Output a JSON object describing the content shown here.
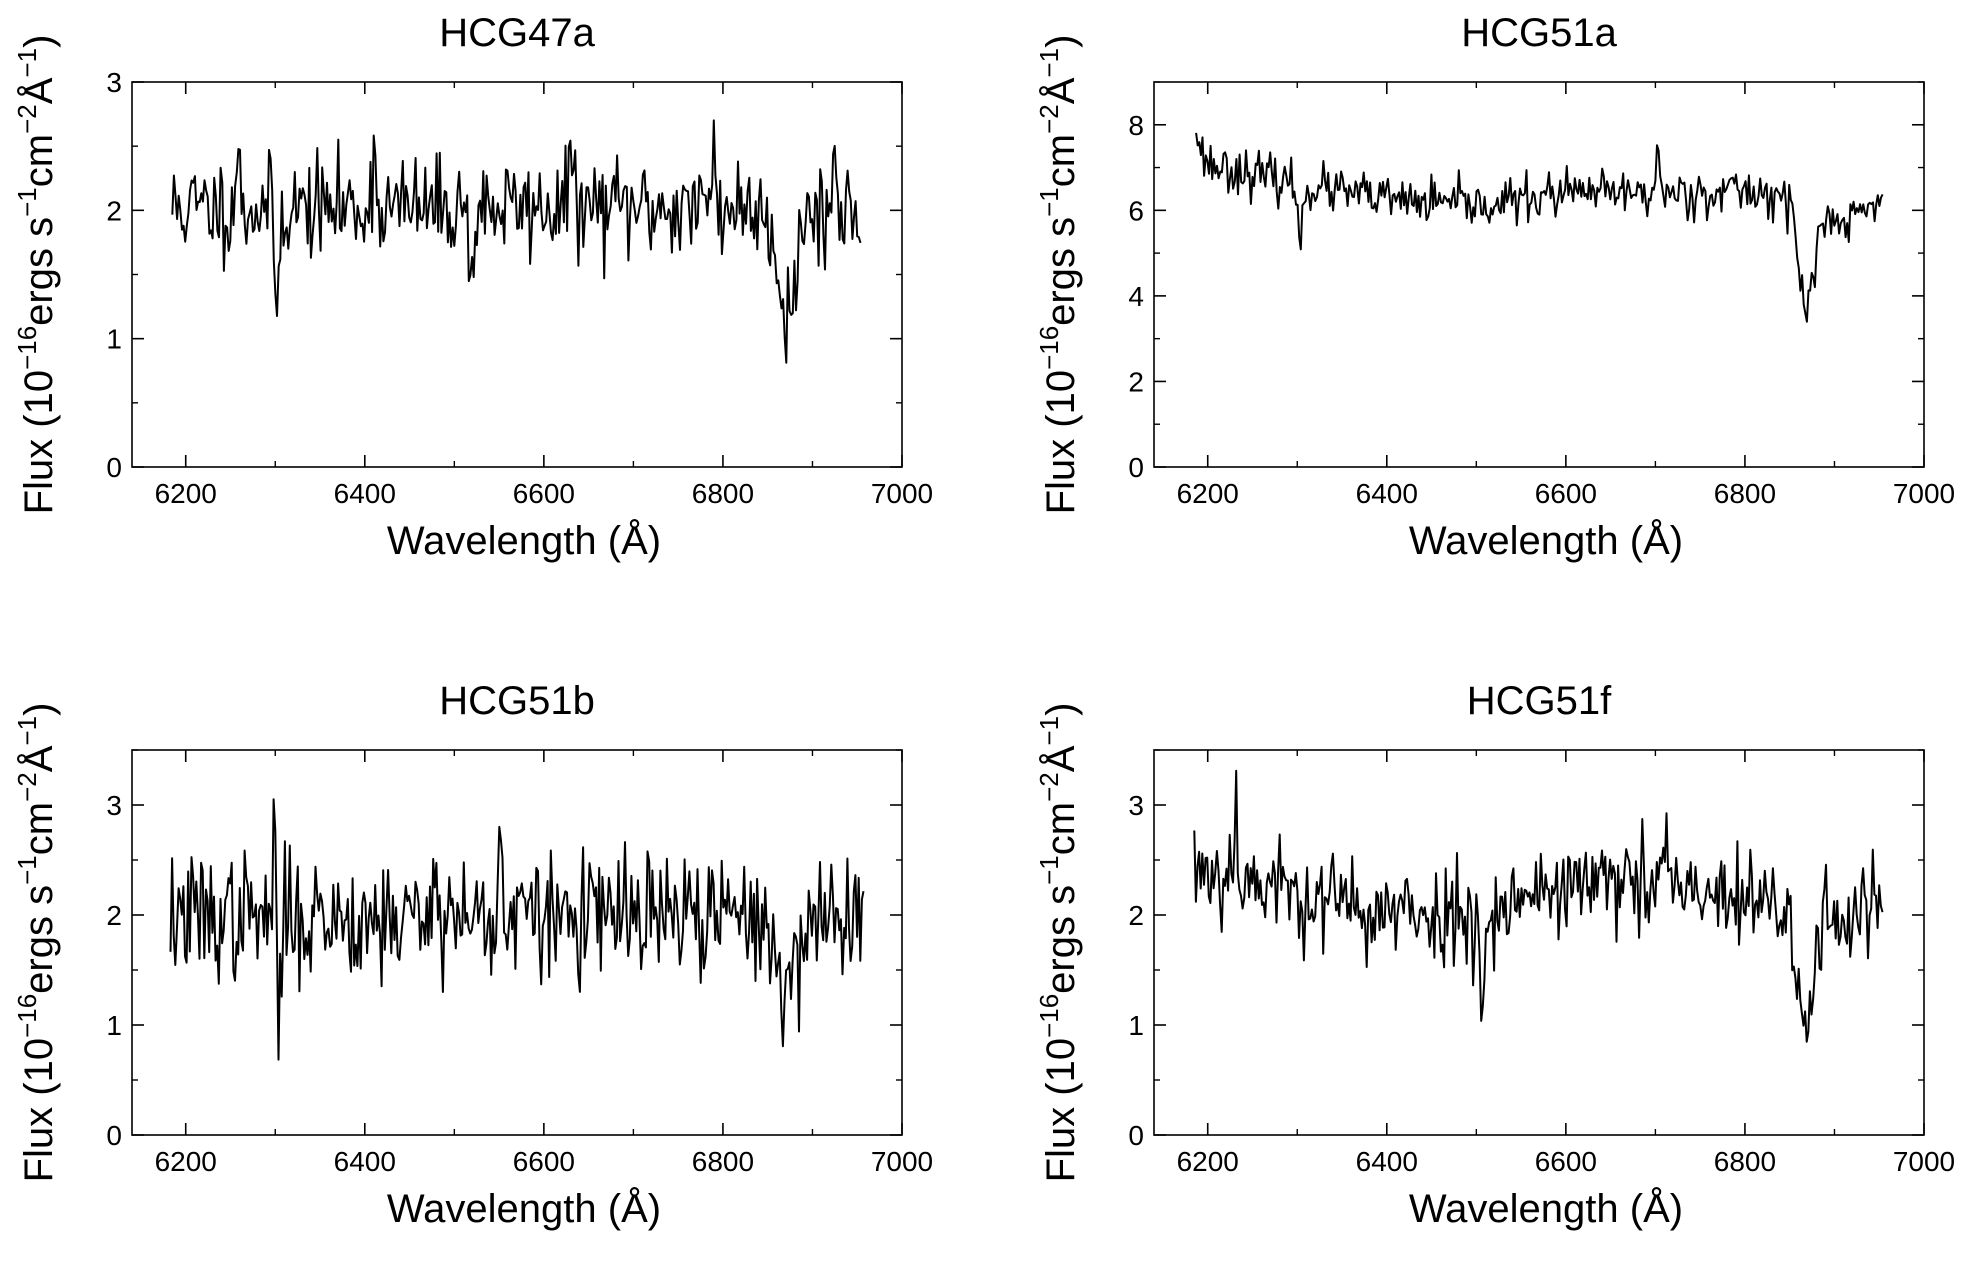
{
  "chart_data": [
    {
      "type": "line",
      "title": "HCG47a",
      "xlabel": "Wavelength (Å)",
      "ylabel": {
        "base": "Flux (10",
        "exp1": "−16",
        "mid1": "ergs s",
        "exp2": "−1",
        "mid2": "cm",
        "exp3": "−2",
        "mid3": "Å",
        "exp4": "−1",
        "end": ")"
      },
      "xlim": [
        6140,
        7000
      ],
      "ylim": [
        0,
        3
      ],
      "xticks": [
        6200,
        6400,
        6600,
        6800,
        7000
      ],
      "yticks": [
        0,
        1,
        2,
        3
      ],
      "yminor": [
        0.5,
        1.5,
        2.5
      ],
      "x_range": [
        6185,
        6955
      ],
      "baseline": 2.02,
      "noise": 0.26,
      "features": [
        {
          "x": 6302,
          "depth": 0.85
        },
        {
          "x": 6520,
          "depth": 0.6
        },
        {
          "x": 6872,
          "depth": 0.8,
          "width": 10
        }
      ],
      "spikes": [
        {
          "x": 6258,
          "height": 0.6
        },
        {
          "x": 6410,
          "height": 0.55
        },
        {
          "x": 6630,
          "height": 0.65
        },
        {
          "x": 6790,
          "height": 0.65
        },
        {
          "x": 6925,
          "height": 0.4
        }
      ],
      "seed": 11
    },
    {
      "type": "line",
      "title": "HCG51a",
      "xlabel": "Wavelength (Å)",
      "ylabel": {
        "base": "Flux (10",
        "exp1": "−16",
        "mid1": "ergs s",
        "exp2": "−1",
        "mid2": "cm",
        "exp3": "−2",
        "mid3": "Å",
        "exp4": "−1",
        "end": ")"
      },
      "xlim": [
        6140,
        7000
      ],
      "ylim": [
        0,
        9
      ],
      "xticks": [
        6200,
        6400,
        6600,
        6800,
        7000
      ],
      "yticks": [
        0,
        2,
        4,
        6,
        8
      ],
      "yminor": [
        1,
        3,
        5,
        7,
        9
      ],
      "x_range": [
        6187,
        6955
      ],
      "baseline_points": [
        [
          6187,
          7.6
        ],
        [
          6200,
          7.1
        ],
        [
          6300,
          6.6
        ],
        [
          6400,
          6.25
        ],
        [
          6500,
          6.1
        ],
        [
          6600,
          6.4
        ],
        [
          6700,
          6.4
        ],
        [
          6800,
          6.45
        ],
        [
          6860,
          6.3
        ],
        [
          6900,
          5.6
        ],
        [
          6955,
          6.3
        ]
      ],
      "noise": 0.35,
      "features": [
        {
          "x": 6303,
          "depth": 1.5
        },
        {
          "x": 6868,
          "depth": 2.5,
          "width": 8
        }
      ],
      "spikes": [
        {
          "x": 6187,
          "height": 0.5
        },
        {
          "x": 6703,
          "height": 1.2
        }
      ],
      "seed": 23
    },
    {
      "type": "line",
      "title": "HCG51b",
      "xlabel": "Wavelength (Å)",
      "ylabel": {
        "base": "Flux (10",
        "exp1": "−16",
        "mid1": "ergs s",
        "exp2": "−1",
        "mid2": "cm",
        "exp3": "−2",
        "mid3": "Å",
        "exp4": "−1",
        "end": ")"
      },
      "xlim": [
        6140,
        7000
      ],
      "ylim": [
        0,
        3.5
      ],
      "xticks": [
        6200,
        6400,
        6600,
        6800,
        7000
      ],
      "yticks": [
        0,
        1,
        2,
        3
      ],
      "yminor": [
        0.5,
        1.5,
        2.5,
        3.5
      ],
      "x_range": [
        6183,
        6958
      ],
      "baseline": 1.98,
      "noise": 0.38,
      "features": [
        {
          "x": 6303,
          "depth": 1.1
        },
        {
          "x": 6870,
          "depth": 0.9,
          "width": 8
        }
      ],
      "spikes": [
        {
          "x": 6300,
          "height": 1.1
        },
        {
          "x": 6480,
          "height": 0.95
        },
        {
          "x": 6552,
          "height": 0.9
        }
      ],
      "seed": 37
    },
    {
      "type": "line",
      "title": "HCG51f",
      "xlabel": "Wavelength (Å)",
      "ylabel": {
        "base": "Flux (10",
        "exp1": "−16",
        "mid1": "ergs s",
        "exp2": "−1",
        "mid2": "cm",
        "exp3": "−2",
        "mid3": "Å",
        "exp4": "−1",
        "end": ")"
      },
      "xlim": [
        6140,
        7000
      ],
      "ylim": [
        0,
        3.5
      ],
      "xticks": [
        6200,
        6400,
        6600,
        6800,
        7000
      ],
      "yticks": [
        0,
        1,
        2,
        3
      ],
      "yminor": [
        0.5,
        1.5,
        2.5,
        3.5
      ],
      "x_range": [
        6185,
        6955
      ],
      "baseline_points": [
        [
          6185,
          2.45
        ],
        [
          6300,
          2.2
        ],
        [
          6400,
          2.0
        ],
        [
          6500,
          2.0
        ],
        [
          6600,
          2.3
        ],
        [
          6700,
          2.25
        ],
        [
          6800,
          2.1
        ],
        [
          6860,
          2.0
        ],
        [
          6955,
          2.05
        ]
      ],
      "noise": 0.3,
      "features": [
        {
          "x": 6507,
          "depth": 0.9
        },
        {
          "x": 6868,
          "depth": 1.1,
          "width": 8
        }
      ],
      "spikes": [
        {
          "x": 6232,
          "height": 0.8
        },
        {
          "x": 6712,
          "height": 0.7
        }
      ],
      "seed": 53
    }
  ]
}
